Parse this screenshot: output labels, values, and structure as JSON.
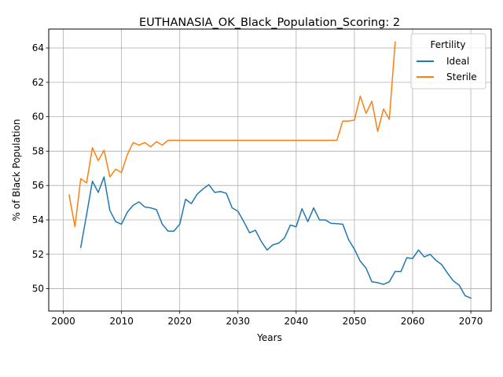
{
  "chart_data": {
    "type": "line",
    "title": "EUTHANASIA_OK_Black_Population_Scoring: 2",
    "xlabel": "Years",
    "ylabel": "% of Black Population",
    "xlim": [
      1997.5,
      2073.5
    ],
    "ylim": [
      48.7,
      65.1
    ],
    "xticks": [
      2000,
      2010,
      2020,
      2030,
      2040,
      2050,
      2060,
      2070
    ],
    "yticks": [
      50,
      52,
      54,
      56,
      58,
      60,
      62,
      64
    ],
    "grid": true,
    "legend": {
      "title": "Fertility",
      "position": "upper right"
    },
    "series": [
      {
        "name": "Ideal",
        "color": "#1f77b4",
        "x": [
          2003,
          2004,
          2005,
          2006,
          2007,
          2008,
          2009,
          2010,
          2011,
          2012,
          2013,
          2014,
          2015,
          2016,
          2017,
          2018,
          2019,
          2020,
          2021,
          2022,
          2023,
          2024,
          2025,
          2026,
          2027,
          2028,
          2029,
          2030,
          2031,
          2032,
          2033,
          2034,
          2035,
          2036,
          2037,
          2038,
          2039,
          2040,
          2041,
          2042,
          2043,
          2044,
          2045,
          2046,
          2047,
          2048,
          2049,
          2050,
          2051,
          2052,
          2053,
          2054,
          2055,
          2056,
          2057,
          2058,
          2059,
          2060,
          2061,
          2062,
          2063,
          2064,
          2065,
          2066,
          2067,
          2068,
          2069,
          2070
        ],
        "y": [
          52.4,
          54.3,
          56.25,
          55.6,
          56.5,
          54.55,
          53.9,
          53.75,
          54.45,
          54.85,
          55.05,
          54.75,
          54.7,
          54.6,
          53.75,
          53.35,
          53.35,
          53.75,
          55.2,
          54.95,
          55.5,
          55.8,
          56.05,
          55.6,
          55.65,
          55.55,
          54.7,
          54.5,
          53.9,
          53.25,
          53.4,
          52.75,
          52.25,
          52.55,
          52.65,
          52.95,
          53.7,
          53.6,
          54.65,
          53.9,
          54.7,
          54.0,
          54.0,
          53.8,
          53.78,
          53.75,
          52.85,
          52.3,
          51.6,
          51.2,
          50.4,
          50.35,
          50.25,
          50.4,
          51.0,
          51.0,
          51.8,
          51.75,
          52.25,
          51.85,
          52.0,
          51.65,
          51.4,
          50.9,
          50.45,
          50.2,
          49.6,
          49.45
        ]
      },
      {
        "name": "Sterile",
        "color": "#ff7f0e",
        "x": [
          2001,
          2002,
          2003,
          2004,
          2005,
          2006,
          2007,
          2008,
          2009,
          2010,
          2011,
          2012,
          2013,
          2014,
          2015,
          2016,
          2017,
          2018,
          2019,
          2020,
          2021,
          2022,
          2023,
          2024,
          2025,
          2026,
          2027,
          2028,
          2029,
          2030,
          2031,
          2032,
          2033,
          2034,
          2035,
          2036,
          2037,
          2038,
          2039,
          2040,
          2041,
          2042,
          2043,
          2044,
          2045,
          2046,
          2047,
          2048,
          2049,
          2050,
          2051,
          2052,
          2053,
          2054,
          2055,
          2056,
          2057
        ],
        "y": [
          55.45,
          53.6,
          56.4,
          56.15,
          58.2,
          57.45,
          58.05,
          56.5,
          56.95,
          56.75,
          57.8,
          58.5,
          58.35,
          58.5,
          58.25,
          58.55,
          58.35,
          58.63,
          58.63,
          58.63,
          58.63,
          58.63,
          58.63,
          58.63,
          58.63,
          58.63,
          58.63,
          58.63,
          58.63,
          58.63,
          58.63,
          58.63,
          58.63,
          58.63,
          58.63,
          58.63,
          58.63,
          58.63,
          58.63,
          58.63,
          58.63,
          58.63,
          58.63,
          58.63,
          58.63,
          58.63,
          58.63,
          59.75,
          59.75,
          59.8,
          61.2,
          60.2,
          60.9,
          59.15,
          60.45,
          59.85,
          64.35
        ]
      }
    ]
  }
}
